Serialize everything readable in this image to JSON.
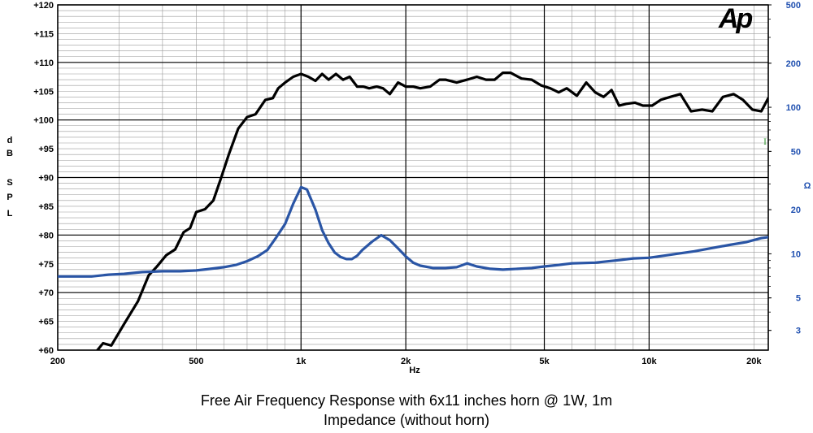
{
  "chart_data": {
    "type": "line",
    "xscale": "log",
    "xlim": [
      200,
      22000
    ],
    "xticks": [
      200,
      500,
      1000,
      2000,
      5000,
      10000,
      20000
    ],
    "xtick_labels": [
      "200",
      "500",
      "1k",
      "2k",
      "5k",
      "10k",
      "20k"
    ],
    "xlabel": "Hz",
    "ylabel": "dB SPL",
    "ylim": [
      60,
      120
    ],
    "yticks": [
      60,
      65,
      70,
      75,
      80,
      85,
      90,
      95,
      100,
      105,
      110,
      115,
      120
    ],
    "ytick_labels": [
      "+60",
      "+65",
      "+70",
      "+75",
      "+80",
      "+85",
      "+90",
      "+95",
      "+100",
      "+105",
      "+110",
      "+115",
      "+120"
    ],
    "y2label": "Ω",
    "y2scale": "log",
    "y2lim": [
      2.2,
      500
    ],
    "y2ticks": [
      3,
      5,
      10,
      20,
      50,
      100,
      200,
      500
    ],
    "y2tick_labels": [
      "3",
      "5",
      "10",
      "20",
      "50",
      "100",
      "200",
      "500"
    ],
    "logo_text": "Ap",
    "marker_text": "I",
    "grid": true,
    "series": [
      {
        "axis": "left",
        "color": "#000000",
        "x": [
          260,
          270,
          285,
          310,
          340,
          365,
          385,
          410,
          435,
          460,
          480,
          500,
          530,
          560,
          590,
          620,
          660,
          700,
          740,
          790,
          830,
          860,
          900,
          950,
          1000,
          1050,
          1100,
          1150,
          1200,
          1260,
          1320,
          1380,
          1450,
          1510,
          1570,
          1650,
          1720,
          1800,
          1900,
          2000,
          2100,
          2200,
          2350,
          2500,
          2600,
          2800,
          3000,
          3200,
          3400,
          3600,
          3800,
          4000,
          4300,
          4600,
          4900,
          5200,
          5500,
          5800,
          6200,
          6600,
          7000,
          7400,
          7800,
          8200,
          8600,
          9100,
          9600,
          10200,
          10800,
          11500,
          12300,
          13200,
          14200,
          15200,
          16300,
          17500,
          18600,
          19800,
          21000,
          22000
        ],
        "values": [
          60.0,
          61.2,
          60.8,
          64.5,
          68.5,
          73.0,
          74.5,
          76.5,
          77.5,
          80.5,
          81.2,
          84.0,
          84.5,
          86.0,
          90.0,
          94.0,
          98.5,
          100.5,
          101.0,
          103.5,
          103.8,
          105.5,
          106.5,
          107.5,
          108.0,
          107.5,
          106.8,
          108.0,
          107.0,
          108.0,
          107.0,
          107.5,
          105.8,
          105.8,
          105.5,
          105.8,
          105.5,
          104.5,
          106.5,
          105.8,
          105.8,
          105.5,
          105.8,
          107.0,
          107.0,
          106.5,
          107.0,
          107.5,
          107.0,
          107.0,
          108.2,
          108.2,
          107.2,
          107.0,
          106.0,
          105.5,
          104.8,
          105.5,
          104.2,
          106.5,
          104.8,
          104.0,
          105.2,
          102.5,
          102.8,
          103.0,
          102.5,
          102.5,
          103.5,
          104.0,
          104.5,
          101.5,
          101.8,
          101.5,
          104.0,
          104.5,
          103.5,
          101.8,
          101.5,
          103.8
        ]
      },
      {
        "axis": "right",
        "color": "#2a55a5",
        "x": [
          200,
          220,
          250,
          280,
          310,
          350,
          400,
          450,
          500,
          550,
          600,
          650,
          700,
          750,
          800,
          850,
          900,
          950,
          1000,
          1040,
          1100,
          1150,
          1200,
          1250,
          1300,
          1350,
          1400,
          1450,
          1500,
          1600,
          1700,
          1800,
          1900,
          2000,
          2100,
          2200,
          2400,
          2600,
          2800,
          3000,
          3200,
          3500,
          3800,
          4200,
          4600,
          5000,
          5500,
          6000,
          7000,
          8000,
          9000,
          10000,
          11000,
          12000,
          13500,
          15000,
          17000,
          19000,
          21000,
          22000
        ],
        "values": [
          7.0,
          7.0,
          7.0,
          7.2,
          7.3,
          7.5,
          7.6,
          7.6,
          7.7,
          7.9,
          8.1,
          8.4,
          8.9,
          9.6,
          10.6,
          13.0,
          16.0,
          22.0,
          28.5,
          27.5,
          20.0,
          14.5,
          11.8,
          10.2,
          9.5,
          9.2,
          9.2,
          9.7,
          10.6,
          12.1,
          13.4,
          12.4,
          10.9,
          9.6,
          8.7,
          8.3,
          8.0,
          8.0,
          8.1,
          8.6,
          8.2,
          7.9,
          7.8,
          7.9,
          8.0,
          8.2,
          8.4,
          8.6,
          8.7,
          9.0,
          9.3,
          9.4,
          9.7,
          10.0,
          10.4,
          10.9,
          11.5,
          12.0,
          12.8,
          13.0
        ]
      }
    ]
  },
  "captions": {
    "line1": "Free Air Frequency Response with 6x11 inches horn @ 1W, 1m",
    "line2": "Impedance (without horn)"
  }
}
